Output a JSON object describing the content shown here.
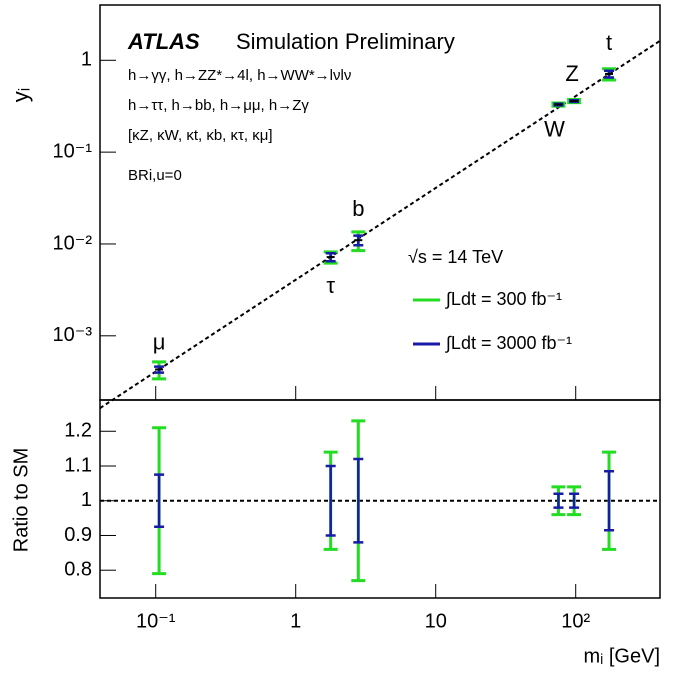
{
  "chart_data": {
    "type": "errorbar",
    "title": "ATLAS",
    "subtitle": "Simulation Preliminary",
    "annotations": [
      "h→γγ, h→ZZ*→4l, h→WW*→lνlν",
      "h→ττ, h→bb, h→μμ, h→Zγ",
      "[κZ, κW, κt, κb, κτ, κμ]",
      "BRi,u=0",
      "√s = 14 TeV"
    ],
    "xlabel": "mᵢ [GeV]",
    "ylabel": "yᵢ",
    "ratio_ylabel": "Ratio to SM",
    "categories": [
      "μ",
      "τ",
      "b",
      "W",
      "Z",
      "t"
    ],
    "x": [
      0.1057,
      1.777,
      2.8,
      80.4,
      91.2,
      173
    ],
    "y": [
      0.00043,
      0.0072,
      0.011,
      0.33,
      0.36,
      0.71
    ],
    "series": [
      {
        "name": "∫Ldt = 300 fb⁻¹",
        "color": "#22dd22",
        "values": [
          1,
          1,
          1,
          1,
          1,
          1
        ],
        "errors": [
          0.21,
          0.14,
          0.23,
          0.04,
          0.04,
          0.14
        ]
      },
      {
        "name": "∫Ldt = 3000 fb⁻¹",
        "color": "#1a1aa8",
        "values": [
          1,
          1,
          1,
          1,
          1,
          1
        ],
        "errors": [
          0.075,
          0.1,
          0.12,
          0.02,
          0.02,
          0.085
        ]
      }
    ],
    "reference_line": {
      "x": [
        0.04,
        400
      ],
      "y": [
        0.000163,
        1.63
      ]
    },
    "ratio_reference": 1,
    "xscale": "log",
    "yscale": "log",
    "xlim": [
      0.04,
      400
    ],
    "ylim": [
      0.0002,
      4
    ],
    "ratio_ylim": [
      0.72,
      1.29
    ],
    "xticks": [
      {
        "value": 0.1,
        "label": "10⁻¹"
      },
      1,
      10,
      {
        "value": 100,
        "label": "10²"
      }
    ],
    "yticks": [
      {
        "value": 0.001,
        "label": "10⁻³"
      },
      {
        "value": 0.01,
        "label": "10⁻²"
      },
      {
        "value": 0.1,
        "label": "10⁻¹"
      },
      1
    ],
    "ratio_yticks": [
      0.8,
      0.9,
      1,
      1.1,
      1.2
    ]
  }
}
